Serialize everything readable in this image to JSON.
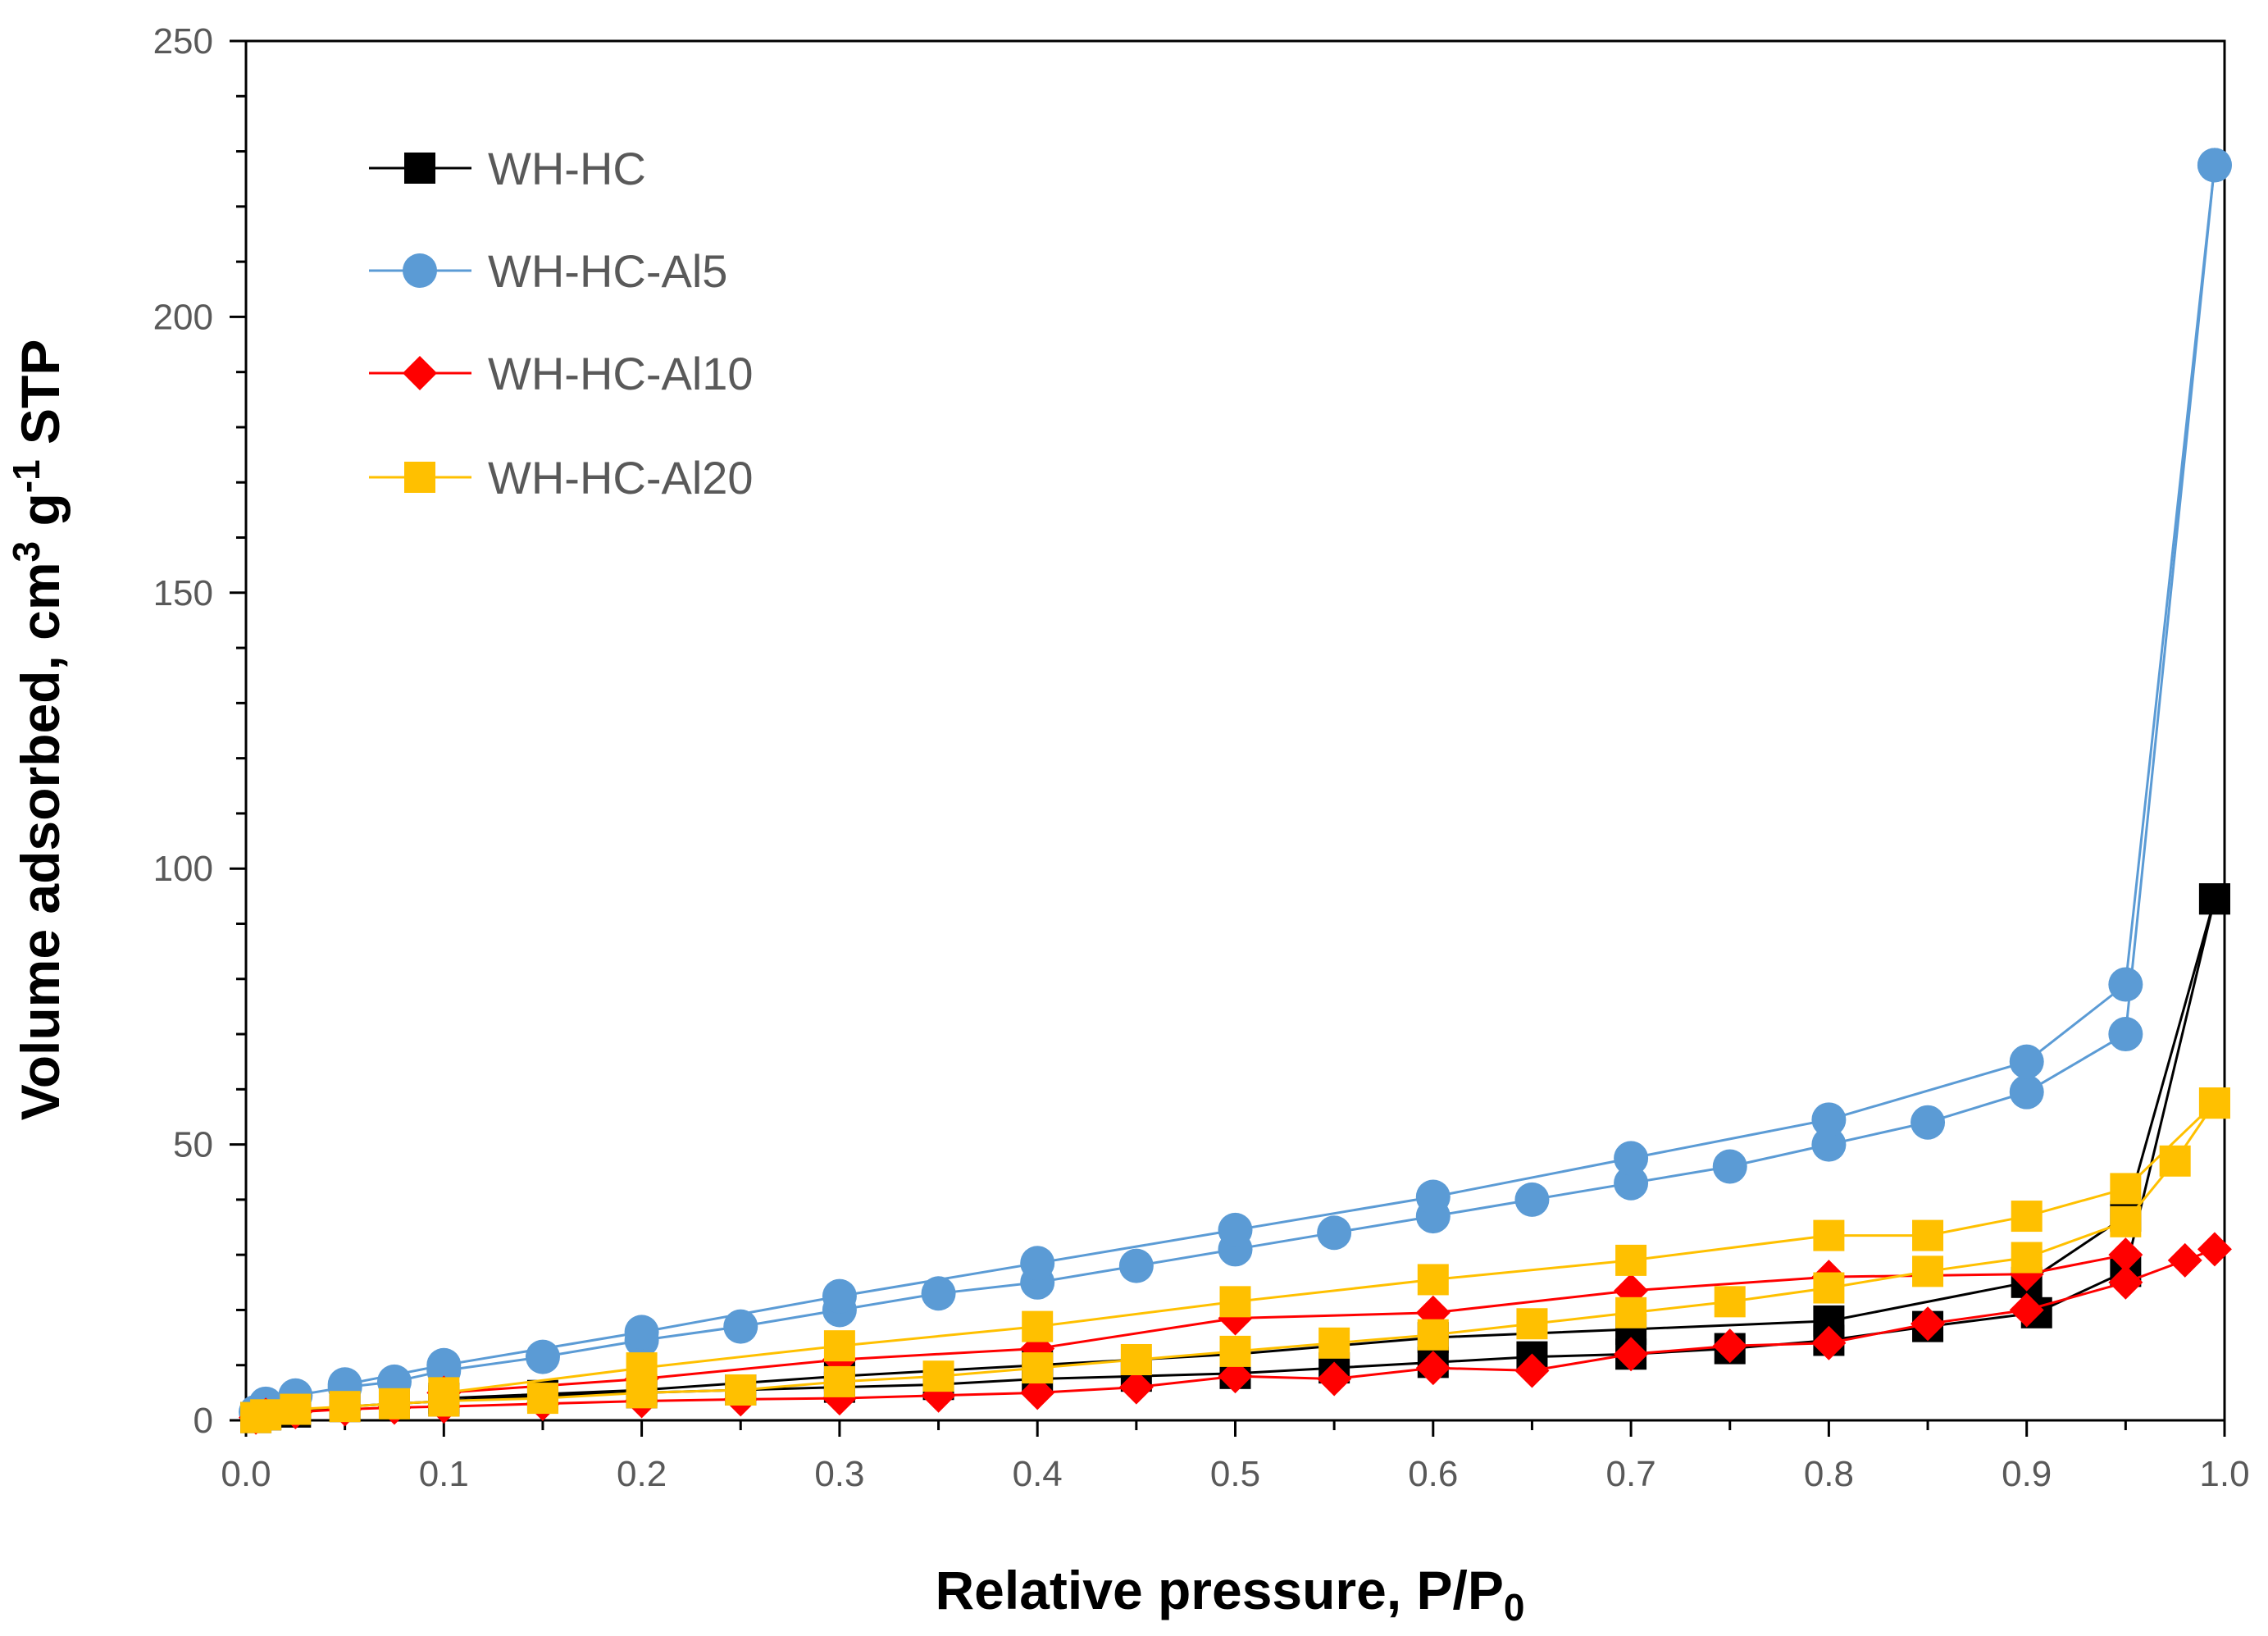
{
  "chart_data": {
    "type": "scatter",
    "title": "",
    "xlabel_main": "Relative pressure, P/P",
    "xlabel_sub": "0",
    "ylabel_main": "Volume adsorbed, cm",
    "ylabel_sup1": "3",
    "ylabel_mid": " g",
    "ylabel_sup2": "-1",
    "ylabel_end": " STP",
    "xlim": [
      0.0,
      1.0
    ],
    "ylim": [
      0,
      250
    ],
    "x_ticks": [
      0.0,
      0.1,
      0.2,
      0.3,
      0.4,
      0.5,
      0.6,
      0.7,
      0.8,
      0.9,
      1.0
    ],
    "x_tick_labels": [
      "0.0",
      "0.1",
      "0.2",
      "0.3",
      "0.4",
      "0.5",
      "0.6",
      "0.7",
      "0.8",
      "0.9",
      "1.0"
    ],
    "y_ticks": [
      0,
      50,
      100,
      150,
      200,
      250
    ],
    "y_tick_labels": [
      "0",
      "50",
      "100",
      "150",
      "200",
      "250"
    ],
    "grid": false,
    "legend_position": "top-left",
    "series": [
      {
        "name": "WH-HC",
        "color": "#000000",
        "marker": "square",
        "adsorption": [
          [
            0.005,
            0.5
          ],
          [
            0.01,
            1
          ],
          [
            0.025,
            1.5
          ],
          [
            0.05,
            2.5
          ],
          [
            0.075,
            3
          ],
          [
            0.1,
            3.5
          ],
          [
            0.15,
            4.5
          ],
          [
            0.2,
            5
          ],
          [
            0.25,
            5.5
          ],
          [
            0.3,
            6
          ],
          [
            0.35,
            6.5
          ],
          [
            0.4,
            7.5
          ],
          [
            0.45,
            8
          ],
          [
            0.5,
            8.5
          ],
          [
            0.55,
            9.5
          ],
          [
            0.6,
            10.5
          ],
          [
            0.65,
            11.5
          ],
          [
            0.7,
            12
          ],
          [
            0.75,
            13
          ],
          [
            0.8,
            14.5
          ],
          [
            0.85,
            17
          ],
          [
            0.905,
            19.5
          ],
          [
            0.95,
            27
          ],
          [
            0.995,
            94.5
          ]
        ],
        "desorption": [
          [
            0.995,
            94.5
          ],
          [
            0.95,
            37
          ],
          [
            0.9,
            25
          ],
          [
            0.8,
            18
          ],
          [
            0.7,
            16.5
          ],
          [
            0.6,
            15
          ],
          [
            0.5,
            12
          ],
          [
            0.4,
            10
          ],
          [
            0.3,
            8
          ],
          [
            0.2,
            5.5
          ],
          [
            0.1,
            4
          ]
        ]
      },
      {
        "name": "WH-HC-Al5",
        "color": "#5b9bd5",
        "marker": "circle",
        "adsorption": [
          [
            0.005,
            1.5
          ],
          [
            0.01,
            3
          ],
          [
            0.025,
            4.5
          ],
          [
            0.05,
            6
          ],
          [
            0.075,
            7
          ],
          [
            0.1,
            9
          ],
          [
            0.15,
            11.5
          ],
          [
            0.2,
            14.5
          ],
          [
            0.25,
            17
          ],
          [
            0.3,
            20
          ],
          [
            0.35,
            23
          ],
          [
            0.4,
            25
          ],
          [
            0.45,
            28
          ],
          [
            0.5,
            31
          ],
          [
            0.55,
            34
          ],
          [
            0.6,
            37
          ],
          [
            0.65,
            40
          ],
          [
            0.7,
            43
          ],
          [
            0.75,
            46
          ],
          [
            0.8,
            50
          ],
          [
            0.85,
            54
          ],
          [
            0.9,
            59.5
          ],
          [
            0.95,
            70
          ],
          [
            0.995,
            227.5
          ]
        ],
        "desorption": [
          [
            0.995,
            227.5
          ],
          [
            0.95,
            79
          ],
          [
            0.9,
            65
          ],
          [
            0.8,
            54.5
          ],
          [
            0.7,
            47.5
          ],
          [
            0.6,
            40.5
          ],
          [
            0.5,
            34.5
          ],
          [
            0.4,
            28.5
          ],
          [
            0.3,
            22.5
          ],
          [
            0.2,
            16
          ],
          [
            0.1,
            10
          ],
          [
            0.05,
            6.5
          ]
        ]
      },
      {
        "name": "WH-HC-Al10",
        "color": "#ff0000",
        "marker": "diamond",
        "adsorption": [
          [
            0.005,
            0.5
          ],
          [
            0.01,
            1
          ],
          [
            0.025,
            1.5
          ],
          [
            0.05,
            2
          ],
          [
            0.075,
            2.3
          ],
          [
            0.1,
            2.5
          ],
          [
            0.15,
            3
          ],
          [
            0.2,
            3.5
          ],
          [
            0.25,
            3.8
          ],
          [
            0.3,
            4
          ],
          [
            0.35,
            4.5
          ],
          [
            0.4,
            5
          ],
          [
            0.45,
            6
          ],
          [
            0.5,
            8
          ],
          [
            0.55,
            7.5
          ],
          [
            0.6,
            9.5
          ],
          [
            0.65,
            9
          ],
          [
            0.7,
            12
          ],
          [
            0.75,
            13.5
          ],
          [
            0.8,
            14
          ],
          [
            0.85,
            17.5
          ],
          [
            0.9,
            20
          ],
          [
            0.95,
            25
          ],
          [
            0.98,
            29
          ],
          [
            0.995,
            31
          ]
        ],
        "desorption": [
          [
            0.95,
            30
          ],
          [
            0.9,
            26.5
          ],
          [
            0.8,
            26
          ],
          [
            0.7,
            23.5
          ],
          [
            0.6,
            19.5
          ],
          [
            0.5,
            18.5
          ],
          [
            0.4,
            13
          ],
          [
            0.3,
            11
          ],
          [
            0.2,
            7.5
          ],
          [
            0.1,
            5
          ]
        ]
      },
      {
        "name": "WH-HC-Al20",
        "color": "#ffc000",
        "marker": "square",
        "adsorption": [
          [
            0.005,
            0.5
          ],
          [
            0.01,
            1
          ],
          [
            0.025,
            2
          ],
          [
            0.05,
            2.5
          ],
          [
            0.075,
            3
          ],
          [
            0.1,
            3.5
          ],
          [
            0.15,
            4
          ],
          [
            0.2,
            5
          ],
          [
            0.25,
            5.5
          ],
          [
            0.3,
            7
          ],
          [
            0.35,
            8
          ],
          [
            0.4,
            9.5
          ],
          [
            0.45,
            11
          ],
          [
            0.5,
            12.5
          ],
          [
            0.55,
            14
          ],
          [
            0.6,
            15.5
          ],
          [
            0.65,
            17.5
          ],
          [
            0.7,
            19.5
          ],
          [
            0.75,
            21.5
          ],
          [
            0.8,
            24
          ],
          [
            0.85,
            27
          ],
          [
            0.9,
            29.5
          ],
          [
            0.95,
            36
          ],
          [
            0.975,
            47
          ],
          [
            0.995,
            57.5
          ]
        ],
        "desorption": [
          [
            0.995,
            57.5
          ],
          [
            0.95,
            42
          ],
          [
            0.9,
            37
          ],
          [
            0.85,
            33.5
          ],
          [
            0.8,
            33.5
          ],
          [
            0.7,
            29
          ],
          [
            0.6,
            25.5
          ],
          [
            0.5,
            21.5
          ],
          [
            0.4,
            17
          ],
          [
            0.3,
            13.5
          ],
          [
            0.2,
            9.5
          ],
          [
            0.1,
            5
          ]
        ]
      }
    ]
  }
}
